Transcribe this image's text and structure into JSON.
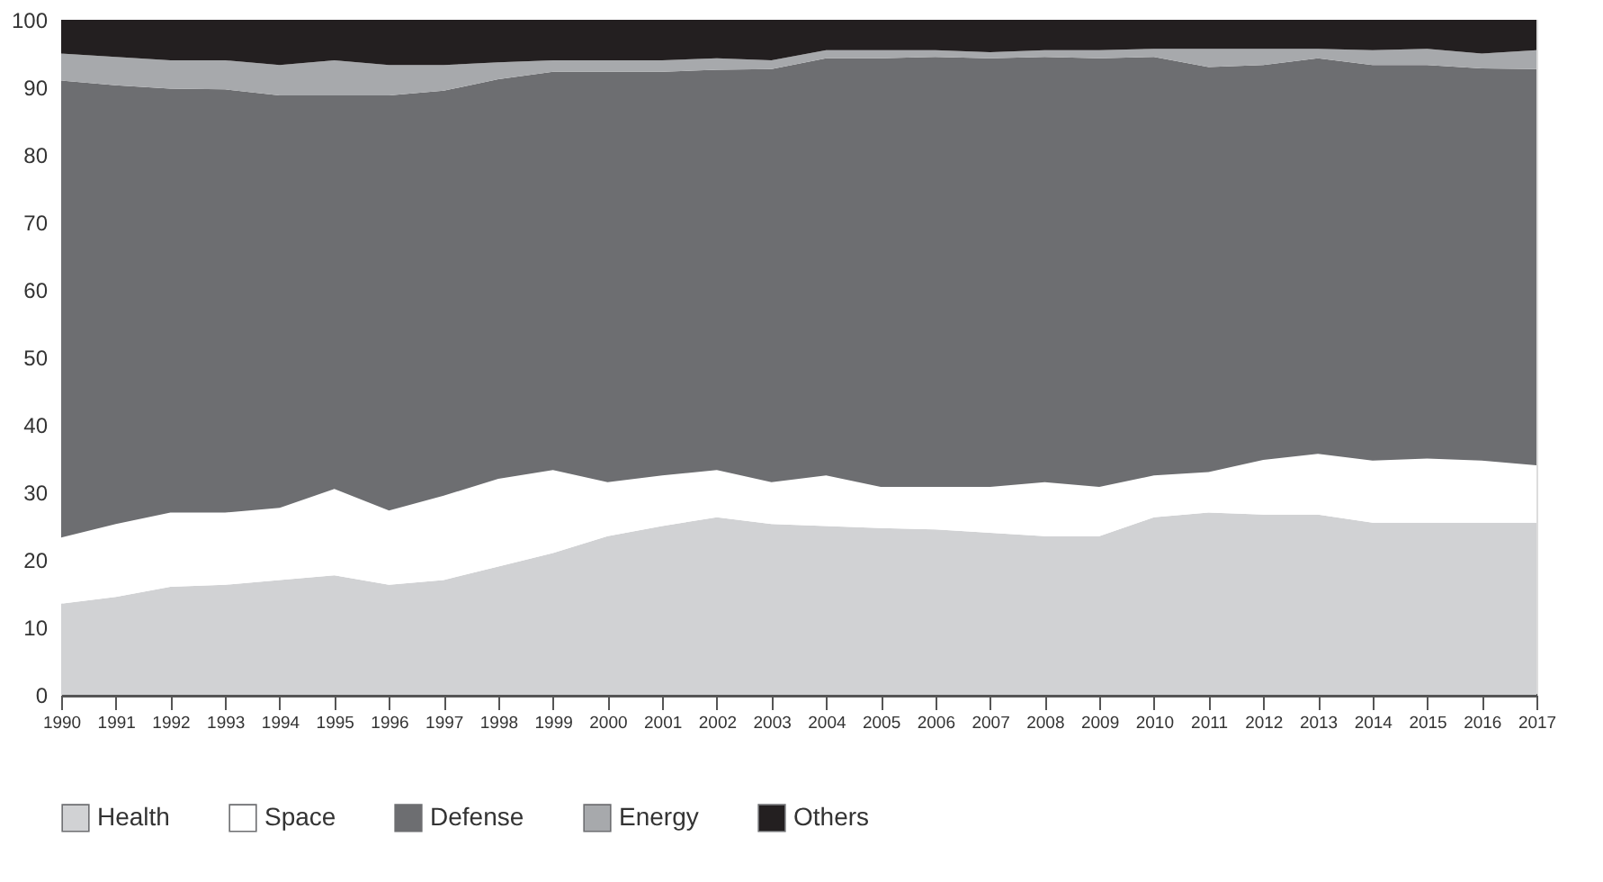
{
  "chart_data": {
    "type": "area",
    "stacked": true,
    "x": [
      1990,
      1991,
      1992,
      1993,
      1994,
      1995,
      1996,
      1997,
      1998,
      1999,
      2000,
      2001,
      2002,
      2003,
      2004,
      2005,
      2006,
      2007,
      2008,
      2009,
      2010,
      2011,
      2012,
      2013,
      2014,
      2015,
      2016,
      2017
    ],
    "series": [
      {
        "name": "Health",
        "color": "#d1d2d4",
        "values": [
          13.5,
          14.5,
          16,
          16.3,
          17,
          17.7,
          16.3,
          17,
          19,
          21,
          23.5,
          25,
          26.3,
          25.3,
          25,
          24.7,
          24.5,
          24,
          23.5,
          23.5,
          26.3,
          27,
          26.7,
          26.7,
          25.5,
          25.5,
          25.5,
          25.5
        ]
      },
      {
        "name": "Space",
        "color": "#ffffff",
        "values": [
          9.8,
          10.8,
          11,
          10.7,
          10.7,
          12.8,
          11,
          12.5,
          13,
          12.3,
          8,
          7.5,
          7,
          6.2,
          7.5,
          6.1,
          6.3,
          6.8,
          8,
          7.3,
          6.2,
          6,
          8.1,
          9,
          9.2,
          9.5,
          9.2,
          8.5
        ]
      },
      {
        "name": "Defense",
        "color": "#6d6e71",
        "values": [
          67.7,
          65,
          62.8,
          62.7,
          61.1,
          58.3,
          61.5,
          60,
          59.2,
          59,
          60.8,
          59.8,
          59.3,
          61.2,
          61.8,
          63.5,
          63.7,
          63.5,
          63,
          63.5,
          62,
          60,
          58.5,
          58.6,
          58.6,
          58.3,
          58.1,
          58.7
        ]
      },
      {
        "name": "Energy",
        "color": "#a7a9ac",
        "values": [
          4,
          4.2,
          4.2,
          4.3,
          4.5,
          5.2,
          4.5,
          3.8,
          2.5,
          1.7,
          1.7,
          1.7,
          1.7,
          1.3,
          1.2,
          1.2,
          1,
          0.9,
          1,
          1.2,
          1.2,
          2.7,
          2.4,
          1.4,
          2.2,
          2.4,
          2.2,
          2.8
        ]
      },
      {
        "name": "Others",
        "color": "#231f20",
        "values": [
          5,
          5.5,
          6,
          6,
          6.7,
          6,
          6.7,
          6.7,
          6.3,
          6,
          6,
          6,
          5.7,
          6,
          4.5,
          4.5,
          4.5,
          4.8,
          4.5,
          4.5,
          4.3,
          4.3,
          4.3,
          4.3,
          4.5,
          4.3,
          5,
          4.5
        ]
      }
    ],
    "xlim": [
      1990,
      2017
    ],
    "xticks": [
      1990,
      1991,
      1992,
      1993,
      1994,
      1995,
      1996,
      1997,
      1998,
      1999,
      2000,
      2001,
      2002,
      2003,
      2004,
      2005,
      2006,
      2007,
      2008,
      2009,
      2010,
      2011,
      2012,
      2013,
      2014,
      2015,
      2016,
      2017
    ],
    "ylim": [
      0,
      100
    ],
    "yticks": [
      0,
      10,
      20,
      30,
      40,
      50,
      60,
      70,
      80,
      90,
      100
    ],
    "grid": false,
    "legend": "bottom"
  }
}
